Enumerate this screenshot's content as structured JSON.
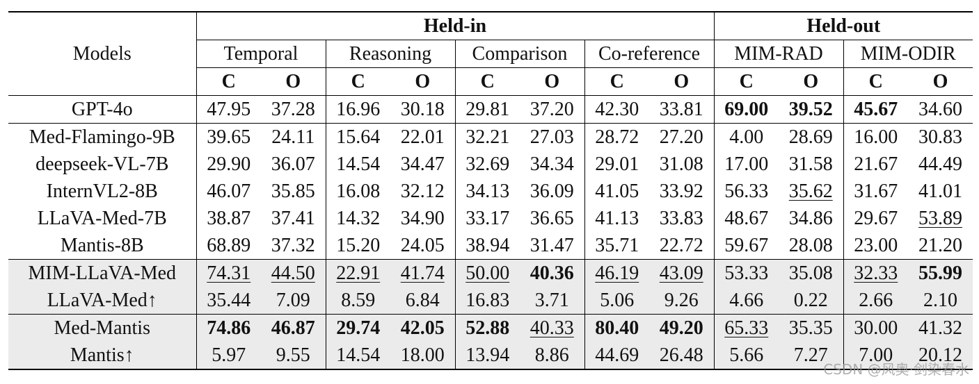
{
  "header": {
    "models": "Models",
    "groups": [
      {
        "label": "Held-in",
        "subgroups": [
          "Temporal",
          "Reasoning",
          "Comparison",
          "Co-reference"
        ]
      },
      {
        "label": "Held-out",
        "subgroups": [
          "MIM-RAD",
          "MIM-ODIR"
        ]
      }
    ],
    "metrics": [
      "C",
      "O"
    ]
  },
  "sections": [
    [
      {
        "model": "GPT-4o",
        "values": [
          "47.95",
          "37.28",
          "16.96",
          "30.18",
          "29.81",
          "37.20",
          "42.30",
          "33.81",
          "69.00",
          "39.52",
          "45.67",
          "34.60"
        ]
      }
    ],
    [
      {
        "model": "Med-Flamingo-9B",
        "values": [
          "39.65",
          "24.11",
          "15.64",
          "22.01",
          "32.21",
          "27.03",
          "28.72",
          "27.20",
          "4.00",
          "28.69",
          "16.00",
          "30.83"
        ]
      },
      {
        "model": "deepseek-VL-7B",
        "values": [
          "29.90",
          "36.07",
          "14.54",
          "34.47",
          "32.69",
          "34.34",
          "29.01",
          "31.08",
          "17.00",
          "31.58",
          "21.67",
          "44.49"
        ]
      },
      {
        "model": "InternVL2-8B",
        "values": [
          "46.07",
          "35.85",
          "16.08",
          "32.12",
          "34.13",
          "36.09",
          "41.05",
          "33.92",
          "56.33",
          "35.62",
          "31.67",
          "41.01"
        ]
      },
      {
        "model": "LLaVA-Med-7B",
        "values": [
          "38.87",
          "37.41",
          "14.32",
          "34.90",
          "33.17",
          "36.65",
          "41.13",
          "33.83",
          "48.67",
          "34.86",
          "29.67",
          "53.89"
        ]
      },
      {
        "model": "Mantis-8B",
        "values": [
          "68.89",
          "37.32",
          "15.20",
          "24.05",
          "38.94",
          "31.47",
          "35.71",
          "22.72",
          "59.67",
          "28.08",
          "23.00",
          "21.20"
        ]
      }
    ],
    [
      {
        "model": "MIM-LLaVA-Med",
        "values": [
          "74.31",
          "44.50",
          "22.91",
          "41.74",
          "50.00",
          "40.36",
          "46.19",
          "43.09",
          "53.33",
          "35.08",
          "32.33",
          "55.99"
        ]
      },
      {
        "model": "LLaVA-Med↑",
        "values": [
          "35.44",
          "7.09",
          "8.59",
          "6.84",
          "16.83",
          "3.71",
          "5.06",
          "9.26",
          "4.66",
          "0.22",
          "2.66",
          "2.10"
        ]
      }
    ],
    [
      {
        "model": "Med-Mantis",
        "values": [
          "74.86",
          "46.87",
          "29.74",
          "42.05",
          "52.88",
          "40.33",
          "80.40",
          "49.20",
          "65.33",
          "35.35",
          "30.00",
          "41.32"
        ]
      },
      {
        "model": "Mantis↑",
        "values": [
          "5.97",
          "9.55",
          "14.54",
          "18.00",
          "13.94",
          "8.86",
          "44.69",
          "26.48",
          "5.66",
          "7.27",
          "7.00",
          "20.12"
        ]
      }
    ]
  ],
  "watermark": "CSDN @风奥·剑染春水"
}
